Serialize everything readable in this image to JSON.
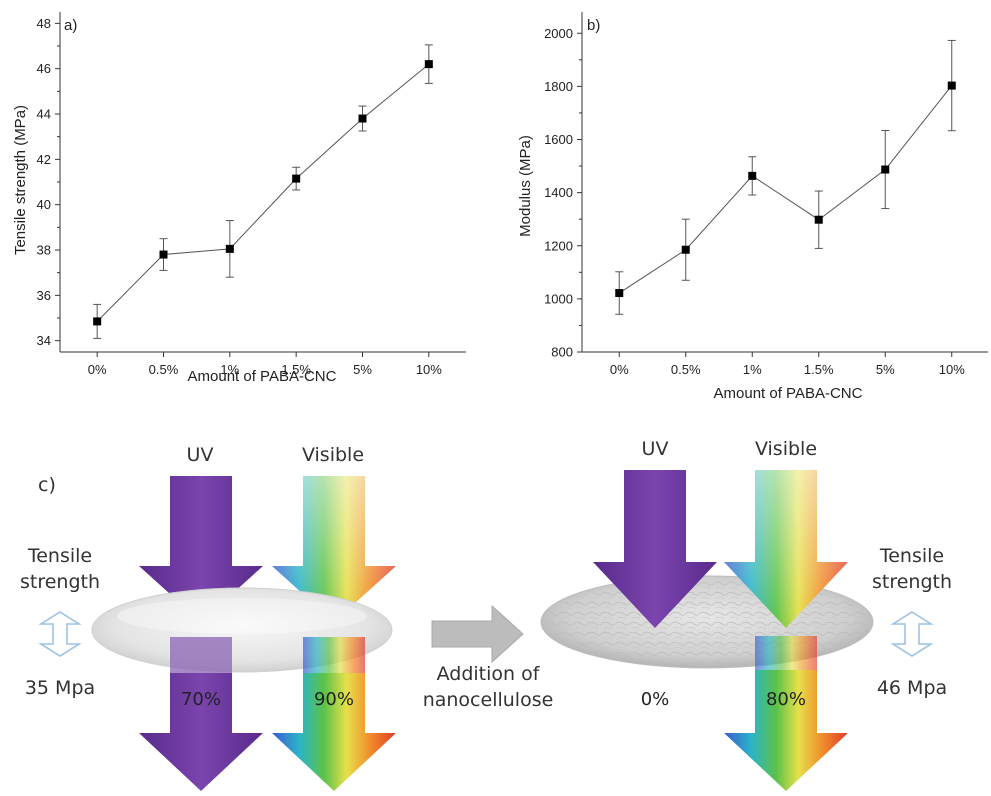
{
  "chart_data": [
    {
      "type": "line",
      "panel": "a)",
      "title": "",
      "xlabel": "Amount of PABA-CNC",
      "ylabel": "Tensile strength (MPa)",
      "categories": [
        "0%",
        "0.5%",
        "1%",
        "1.5%",
        "5%",
        "10%"
      ],
      "values": [
        34.85,
        37.8,
        38.05,
        41.15,
        43.8,
        46.2
      ],
      "errors": [
        0.75,
        0.7,
        1.25,
        0.5,
        0.55,
        0.85
      ],
      "ylim": [
        33.5,
        48.5
      ],
      "yticks": [
        34,
        36,
        38,
        40,
        42,
        44,
        46,
        48
      ],
      "grid": false,
      "marker": "square",
      "color": "#000000"
    },
    {
      "type": "line",
      "panel": "b)",
      "title": "",
      "xlabel": "Amount of PABA-CNC",
      "ylabel": "Modulus (MPa)",
      "categories": [
        "0%",
        "0.5%",
        "1%",
        "1.5%",
        "5%",
        "10%"
      ],
      "values": [
        1022,
        1185,
        1463,
        1298,
        1487,
        1803
      ],
      "errors": [
        80,
        115,
        72,
        108,
        147,
        170
      ],
      "ylim": [
        800,
        2080
      ],
      "yticks": [
        800,
        1000,
        1200,
        1400,
        1600,
        1800,
        2000
      ],
      "grid": false,
      "marker": "square",
      "color": "#000000"
    }
  ],
  "diagram": {
    "panel": "c)",
    "left": {
      "uv_label": "UV",
      "visible_label": "Visible",
      "uv_transmission": "70%",
      "visible_transmission": "90%",
      "strength_label_line1": "Tensile",
      "strength_label_line2": "strength",
      "strength_value": "35 Mpa"
    },
    "right": {
      "uv_label": "UV",
      "visible_label": "Visible",
      "uv_transmission": "0%",
      "visible_transmission": "80%",
      "strength_label_line1": "Tensile",
      "strength_label_line2": "strength",
      "strength_value": "46 Mpa"
    },
    "process_line1": "Addition of",
    "process_line2": "nanocellulose",
    "colors": {
      "uv_arrow": "#6f3aa0",
      "film": "#e6e6e6",
      "process_arrow": "#b8b8b8",
      "strength_arrow": "#9cc2e5"
    }
  }
}
